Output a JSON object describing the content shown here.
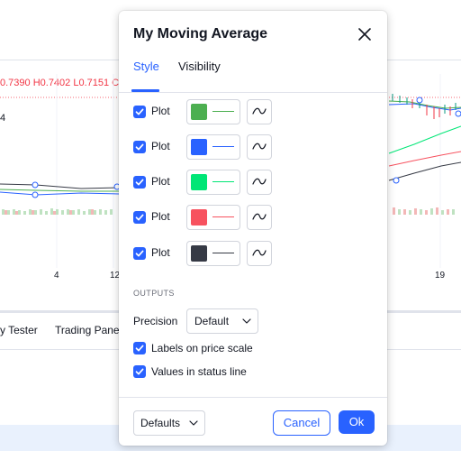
{
  "background": {
    "ohlc_text": "0.7390 H0.7402 L0.7151 C0",
    "left_fragment": "4",
    "x_ticks": [
      "4",
      "12",
      "19"
    ],
    "panel_tabs": [
      "y Tester",
      "Trading Panel"
    ]
  },
  "dialog": {
    "title": "My Moving Average",
    "tabs": [
      {
        "label": "Style",
        "active": true
      },
      {
        "label": "Visibility",
        "active": false
      }
    ],
    "plots": [
      {
        "label": "Plot",
        "checked": true,
        "color": "#4caf50"
      },
      {
        "label": "Plot",
        "checked": true,
        "color": "#2962ff"
      },
      {
        "label": "Plot",
        "checked": true,
        "color": "#00e676"
      },
      {
        "label": "Plot",
        "checked": true,
        "color": "#f7525f"
      },
      {
        "label": "Plot",
        "checked": true,
        "color": "#363a45"
      }
    ],
    "outputs": {
      "section_title": "OUTPUTS",
      "precision_label": "Precision",
      "precision_value": "Default",
      "labels_on_price_scale": {
        "label": "Labels on price scale",
        "checked": true
      },
      "values_in_status_line": {
        "label": "Values in status line",
        "checked": true
      }
    },
    "footer": {
      "defaults_label": "Defaults",
      "cancel_label": "Cancel",
      "ok_label": "Ok"
    }
  },
  "colors": {
    "accent": "#2962ff",
    "border": "#d1d4dc",
    "text": "#131722"
  }
}
